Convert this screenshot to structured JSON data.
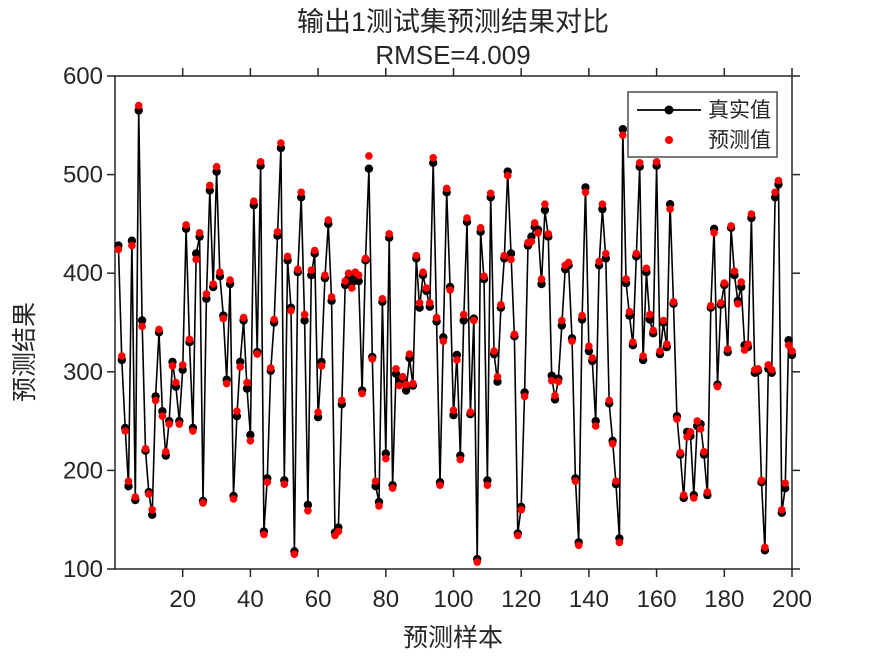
{
  "chart_data": {
    "type": "line",
    "title": "输出1测试集预测结果对比",
    "subtitle": "RMSE=4.009",
    "rmse_value": 4.009,
    "xlabel": "预测样本",
    "ylabel": "预测结果",
    "x_range": [
      0,
      200
    ],
    "y_range": [
      100,
      600
    ],
    "x_ticks": [
      20,
      40,
      60,
      80,
      100,
      120,
      140,
      160,
      180,
      200
    ],
    "y_ticks": [
      100,
      200,
      300,
      400,
      500,
      600
    ],
    "grid": "off",
    "legend": {
      "position": "top-right",
      "items": [
        "真实值",
        "预测值"
      ]
    },
    "colors": {
      "true_series": "#000000",
      "pred_series": "#ff0000",
      "axis": "#262626",
      "background": "#ffffff"
    },
    "series": [
      {
        "name": "真实值",
        "style": "line+marker",
        "color": "#000000",
        "values": [
          428,
          312,
          243,
          184,
          433,
          170,
          565,
          352,
          220,
          178,
          155,
          275,
          340,
          260,
          215,
          250,
          310,
          285,
          250,
          302,
          445,
          330,
          243,
          420,
          437,
          169,
          374,
          484,
          386,
          503,
          397,
          357,
          292,
          389,
          174,
          255,
          310,
          352,
          283,
          236,
          469,
          320,
          509,
          138,
          192,
          301,
          350,
          438,
          527,
          190,
          413,
          365,
          118,
          401,
          477,
          352,
          165,
          398,
          420,
          254,
          310,
          395,
          450,
          372,
          137,
          142,
          267,
          388,
          395,
          390,
          398,
          392,
          281,
          413,
          506,
          315,
          184,
          168,
          371,
          217,
          436,
          185,
          298,
          291,
          292,
          281,
          314,
          286,
          415,
          365,
          398,
          382,
          366,
          512,
          351,
          188,
          335,
          482,
          386,
          256,
          317,
          215,
          352,
          452,
          257,
          354,
          110,
          442,
          394,
          190,
          477,
          318,
          290,
          365,
          415,
          503,
          420,
          336,
          136,
          163,
          279,
          428,
          437,
          447,
          444,
          389,
          464,
          437,
          296,
          272,
          293,
          347,
          404,
          408,
          334,
          192,
          127,
          353,
          487,
          321,
          311,
          250,
          408,
          465,
          415,
          268,
          230,
          186,
          131,
          546,
          390,
          357,
          327,
          417,
          508,
          312,
          401,
          353,
          339,
          509,
          318,
          350,
          325,
          470,
          369,
          255,
          216,
          172,
          239,
          235,
          175,
          245,
          247,
          216,
          175,
          365,
          445,
          287,
          368,
          388,
          320,
          446,
          398,
          372,
          386,
          327,
          325,
          456,
          299,
          301,
          188,
          119,
          303,
          299,
          477,
          490,
          157,
          182,
          332,
          317
        ]
      },
      {
        "name": "预测值",
        "style": "marker",
        "color": "#ff0000",
        "values": [
          424,
          316,
          240,
          189,
          428,
          173,
          570,
          346,
          222,
          176,
          160,
          271,
          343,
          255,
          219,
          247,
          306,
          289,
          247,
          307,
          449,
          333,
          240,
          414,
          441,
          167,
          379,
          489,
          389,
          508,
          401,
          354,
          288,
          393,
          171,
          260,
          305,
          355,
          289,
          230,
          473,
          318,
          513,
          135,
          188,
          304,
          353,
          442,
          532,
          186,
          417,
          362,
          115,
          404,
          482,
          358,
          159,
          403,
          423,
          259,
          306,
          398,
          454,
          376,
          134,
          138,
          271,
          392,
          400,
          385,
          401,
          398,
          278,
          415,
          519,
          313,
          189,
          164,
          374,
          212,
          440,
          182,
          303,
          286,
          295,
          287,
          318,
          288,
          418,
          370,
          401,
          385,
          370,
          517,
          355,
          185,
          331,
          486,
          383,
          261,
          312,
          211,
          358,
          456,
          259,
          352,
          107,
          446,
          397,
          185,
          481,
          321,
          295,
          368,
          418,
          499,
          414,
          338,
          134,
          160,
          275,
          431,
          432,
          451,
          441,
          394,
          470,
          440,
          291,
          276,
          290,
          352,
          408,
          411,
          331,
          189,
          124,
          357,
          482,
          326,
          314,
          245,
          412,
          470,
          420,
          271,
          227,
          189,
          127,
          540,
          394,
          361,
          330,
          420,
          512,
          316,
          405,
          358,
          342,
          513,
          321,
          352,
          328,
          465,
          371,
          252,
          218,
          175,
          234,
          239,
          172,
          250,
          242,
          219,
          178,
          367,
          441,
          285,
          370,
          390,
          323,
          448,
          402,
          369,
          391,
          322,
          328,
          460,
          302,
          303,
          190,
          122,
          307,
          302,
          482,
          494,
          160,
          187,
          327,
          321
        ]
      }
    ]
  }
}
